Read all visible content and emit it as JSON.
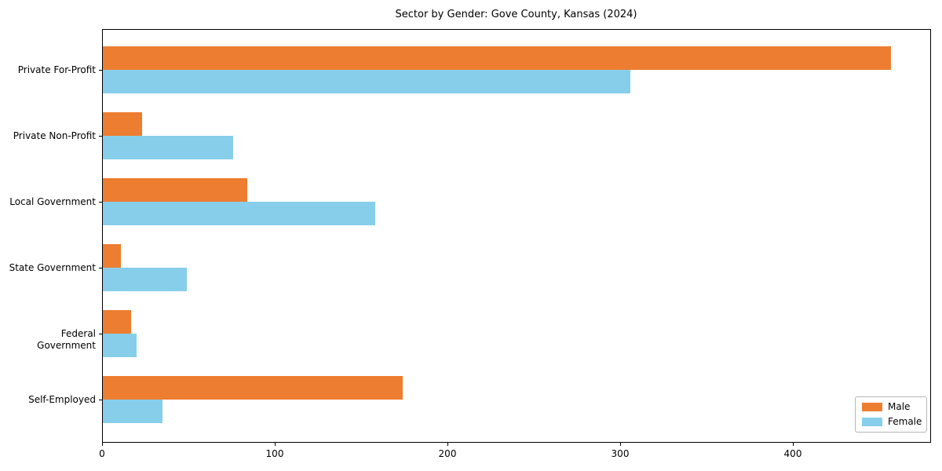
{
  "chart_data": {
    "type": "bar",
    "orientation": "horizontal",
    "title": "Sector by Gender: Gove County, Kansas (2024)",
    "categories": [
      "Private For-Profit",
      "Private Non-Profit",
      "Local Government",
      "State Government",
      "Federal Government",
      "Self-Employed"
    ],
    "series": [
      {
        "name": "Male",
        "color": "#ed7d31",
        "values": [
          457,
          23,
          84,
          11,
          17,
          174
        ]
      },
      {
        "name": "Female",
        "color": "#87ceeb",
        "values": [
          306,
          76,
          158,
          49,
          20,
          35
        ]
      }
    ],
    "xlabel": "",
    "ylabel": "",
    "xlim": [
      0,
      480
    ],
    "x_ticks": [
      "0",
      "100",
      "200",
      "300",
      "400"
    ],
    "grid": false,
    "legend_position": "lower right",
    "axis_color": "#000000",
    "text_color": "#000000",
    "background_color": "#ffffff"
  }
}
